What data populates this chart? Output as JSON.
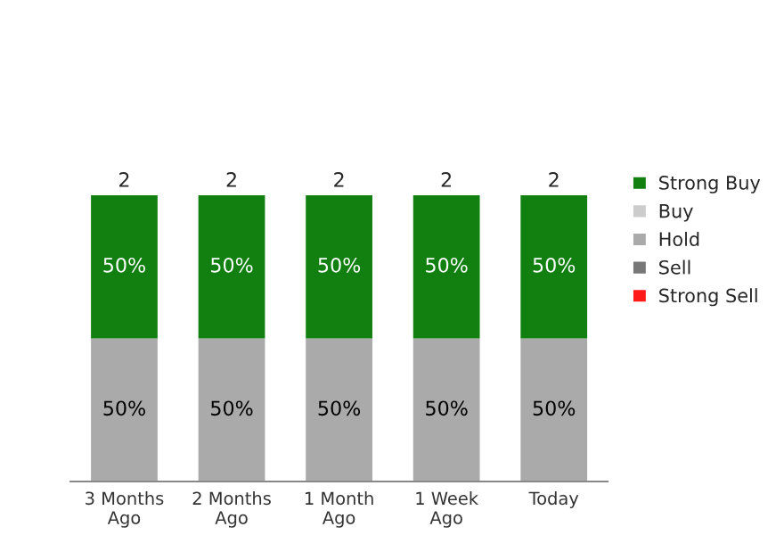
{
  "chart_data": {
    "type": "bar",
    "stacked": true,
    "categories": [
      "3 Months\nAgo",
      "2 Months\nAgo",
      "1 Month\nAgo",
      "1 Week\nAgo",
      "Today"
    ],
    "series": [
      {
        "name": "Strong Sell",
        "color": "#ff1a1a",
        "values": [
          null,
          null,
          null,
          null,
          null
        ],
        "value_labels": [
          null,
          null,
          null,
          null,
          null
        ]
      },
      {
        "name": "Sell",
        "color": "#777777",
        "values": [
          null,
          null,
          null,
          null,
          null
        ],
        "value_labels": [
          null,
          null,
          null,
          null,
          null
        ]
      },
      {
        "name": "Hold",
        "color": "#aaaaaa",
        "values": [
          50,
          50,
          50,
          50,
          50
        ],
        "value_labels": [
          "50%",
          "50%",
          "50%",
          "50%",
          "50%"
        ]
      },
      {
        "name": "Buy",
        "color": "#cccccc",
        "values": [
          null,
          null,
          null,
          null,
          null
        ],
        "value_labels": [
          null,
          null,
          null,
          null,
          null
        ]
      },
      {
        "name": "Strong Buy",
        "color": "#118011",
        "values": [
          50,
          50,
          50,
          50,
          50
        ],
        "value_labels": [
          "50%",
          "50%",
          "50%",
          "50%",
          "50%"
        ]
      }
    ],
    "annotations": [
      {
        "text": "2",
        "x": "3 Months\nAgo",
        "y": 100
      },
      {
        "text": "2",
        "x": "2 Months\nAgo",
        "y": 100
      },
      {
        "text": "2",
        "x": "1 Month\nAgo",
        "y": 100
      },
      {
        "text": "2",
        "x": "1 Week\nAgo",
        "y": 100
      },
      {
        "text": "2",
        "x": "Today",
        "y": 100
      }
    ],
    "legend": "right",
    "grid": false
  }
}
